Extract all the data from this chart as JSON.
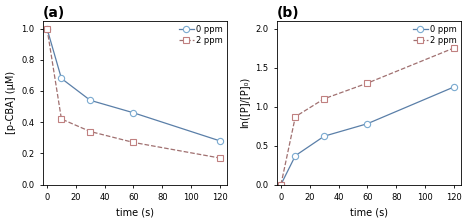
{
  "panel_a": {
    "title": "(a)",
    "xlabel": "time (s)",
    "ylabel": "[p-CBA] (μM)",
    "series": [
      {
        "label": "0 ppm",
        "x": [
          0,
          10,
          30,
          60,
          120
        ],
        "y": [
          1.0,
          0.68,
          0.54,
          0.46,
          0.28
        ],
        "line_color": "#5a7fa8",
        "marker_face": "white",
        "marker_edge": "#7aaad0",
        "marker": "o",
        "markersize": 4.5,
        "linestyle": "-"
      },
      {
        "label": "2 ppm",
        "x": [
          0,
          10,
          30,
          60,
          120
        ],
        "y": [
          1.0,
          0.42,
          0.34,
          0.27,
          0.17
        ],
        "line_color": "#a07070",
        "marker_face": "white",
        "marker_edge": "#c08080",
        "marker": "s",
        "markersize": 4.5,
        "linestyle": "--"
      }
    ],
    "xlim": [
      -3,
      125
    ],
    "ylim": [
      0.0,
      1.05
    ],
    "yticks": [
      0.0,
      0.2,
      0.4,
      0.6,
      0.8,
      1.0
    ],
    "xticks": [
      0,
      20,
      40,
      60,
      80,
      100,
      120
    ]
  },
  "panel_b": {
    "title": "(b)",
    "xlabel": "time (s)",
    "ylabel": "ln([P]/[P]₀)",
    "series": [
      {
        "label": "0 ppm",
        "x": [
          0,
          10,
          30,
          60,
          120
        ],
        "y": [
          0.0,
          0.37,
          0.62,
          0.78,
          1.25
        ],
        "line_color": "#5a7fa8",
        "marker_face": "white",
        "marker_edge": "#7aaad0",
        "marker": "o",
        "markersize": 4.5,
        "linestyle": "-"
      },
      {
        "label": "2 ppm",
        "x": [
          0,
          10,
          30,
          60,
          120
        ],
        "y": [
          0.0,
          0.87,
          1.1,
          1.3,
          1.75
        ],
        "line_color": "#a07070",
        "marker_face": "white",
        "marker_edge": "#c08080",
        "marker": "s",
        "markersize": 4.5,
        "linestyle": "--"
      }
    ],
    "xlim": [
      -3,
      125
    ],
    "ylim": [
      0.0,
      2.1
    ],
    "yticks": [
      0.0,
      0.5,
      1.0,
      1.5,
      2.0
    ],
    "xticks": [
      0,
      20,
      40,
      60,
      80,
      100,
      120
    ]
  },
  "figure_bg": "#ffffff",
  "axes_bg": "#ffffff",
  "legend_fontsize": 6.0,
  "axis_fontsize": 7.0,
  "tick_fontsize": 6.0,
  "title_fontsize": 10,
  "line_width": 0.9
}
